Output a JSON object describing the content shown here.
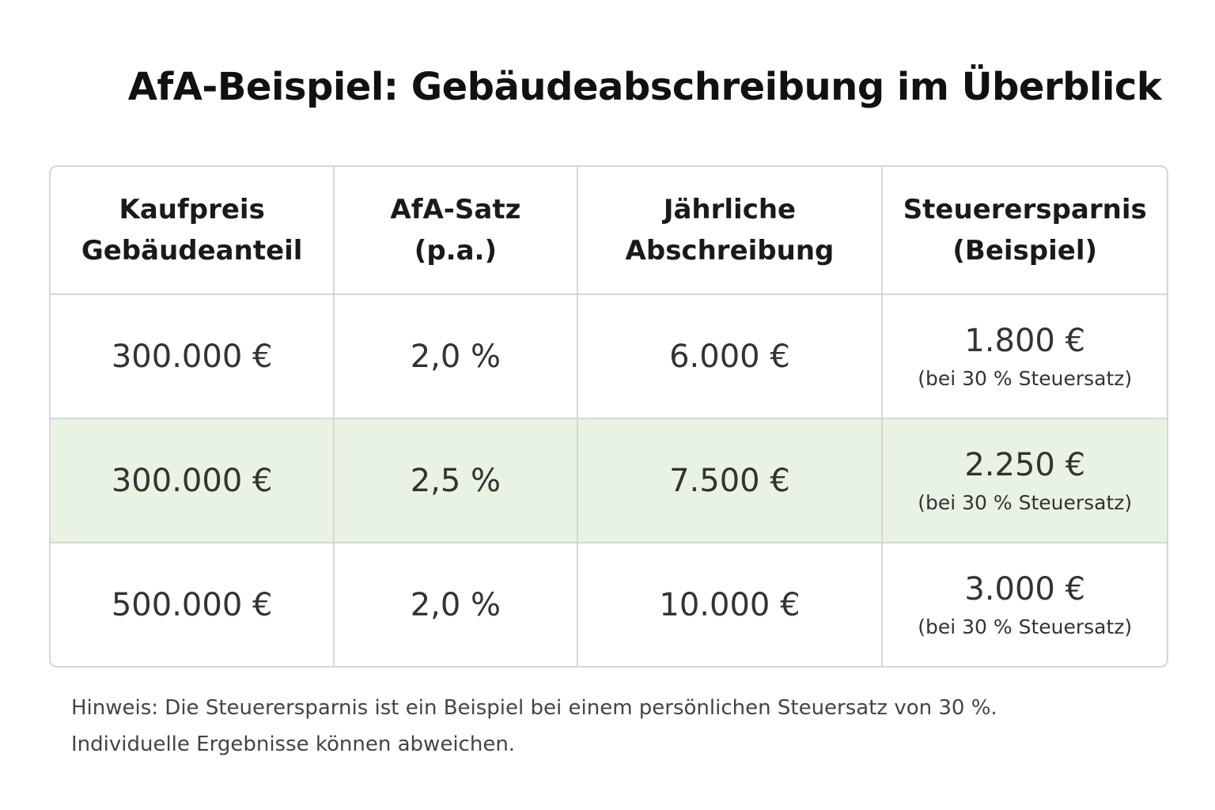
{
  "title": "AfA-Beispiel: Gebäudeabschreibung im Überblick",
  "table": {
    "header": [
      [
        "Kaufpreis",
        "Gebäudeanteil"
      ],
      [
        "AfA-Satz",
        "(p.a.)"
      ],
      [
        "Jährliche",
        "Abschreibung"
      ],
      [
        "Steuerersparnis",
        "(Beispiel)"
      ]
    ],
    "rows": [
      [
        "300.000 €",
        "2,0 %",
        "6.000 €",
        {
          "value": "1.800 €",
          "note": "(bei 30 % Steuersatz)"
        }
      ],
      [
        "300.000 €",
        "2,5 %",
        "7.500 €",
        {
          "value": "2.250 €",
          "note": "(bei 30 % Steuersatz)"
        }
      ],
      [
        "500.000 €",
        "2,0 %",
        "10.000 €",
        {
          "value": "3.000 €",
          "note": "(bei 30 % Steuersatz)"
        }
      ]
    ]
  },
  "footnote": [
    "Hinweis: Die Steuerersparnis ist ein Beispiel bei einem persönlichen Steuersatz von 30 %.",
    "Individuelle Ergebnisse können abweichen."
  ]
}
